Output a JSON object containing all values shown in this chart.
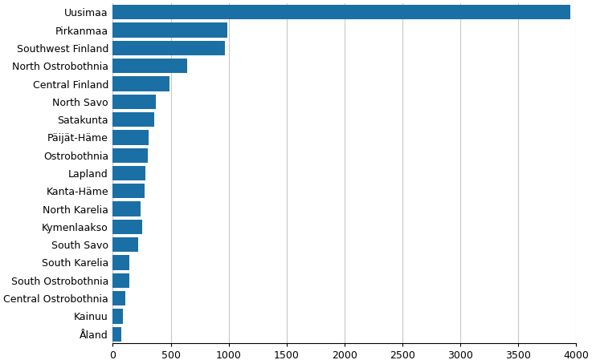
{
  "regions": [
    "Uusimaa",
    "Pirkanmaa",
    "Southwest Finland",
    "North Ostrobothnia",
    "Central Finland",
    "North Savo",
    "Satakunta",
    "Päijät-Häme",
    "Ostrobothnia",
    "Lapland",
    "Kanta-Häme",
    "North Karelia",
    "Kymenlaakso",
    "South Savo",
    "South Karelia",
    "South Ostrobothnia",
    "Central Ostrobothnia",
    "Kainuu",
    "Åland"
  ],
  "values": [
    3950,
    990,
    970,
    640,
    490,
    370,
    360,
    310,
    305,
    280,
    275,
    240,
    255,
    220,
    145,
    145,
    110,
    90,
    70
  ],
  "bar_color": "#1a6fa5",
  "xlim": [
    0,
    4000
  ],
  "xticks": [
    0,
    500,
    1000,
    1500,
    2000,
    2500,
    3000,
    3500,
    4000
  ],
  "grid_color": "#c8c8c8",
  "background_color": "#ffffff",
  "bar_height": 0.82,
  "label_fontsize": 9.0,
  "tick_fontsize": 9.0
}
